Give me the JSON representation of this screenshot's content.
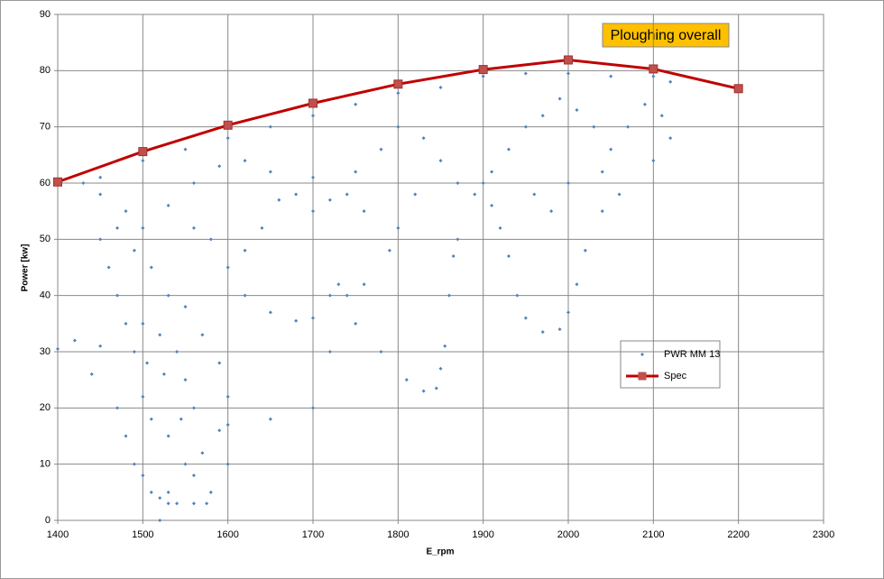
{
  "chart_data": {
    "type": "scatter",
    "title": "Ploughing overall",
    "xlabel": "E_rpm",
    "ylabel": "Power [kw]",
    "xlim": [
      1400,
      2300
    ],
    "xticks": [
      1400,
      1500,
      1600,
      1700,
      1800,
      1900,
      2000,
      2100,
      2200,
      2300
    ],
    "ylim": [
      0,
      90
    ],
    "yticks": [
      0,
      10,
      20,
      30,
      40,
      50,
      60,
      70,
      80,
      90
    ],
    "grid": true,
    "legend": "right",
    "series": [
      {
        "name": "PWR MM 13",
        "type": "scatter",
        "color": "#4f81bd",
        "x": [
          1400,
          1420,
          1450,
          1440,
          1470,
          1480,
          1490,
          1500,
          1510,
          1520,
          1530,
          1540,
          1560,
          1575,
          1580,
          1570,
          1560,
          1550,
          1540,
          1520,
          1500,
          1490,
          1500,
          1510,
          1530,
          1550,
          1560,
          1545,
          1525,
          1505,
          1480,
          1470,
          1460,
          1450,
          1470,
          1490,
          1510,
          1530,
          1550,
          1570,
          1590,
          1600,
          1590,
          1600,
          1520,
          1530,
          1430,
          1450,
          1480,
          1500,
          1530,
          1560,
          1590,
          1620,
          1650,
          1680,
          1700,
          1720,
          1750,
          1780,
          1800,
          1830,
          1850,
          1870,
          1890,
          1910,
          1930,
          1950,
          1970,
          1990,
          2010,
          2030,
          2050,
          2070,
          2090,
          2110,
          2120,
          2100,
          1450,
          1500,
          1550,
          1600,
          1650,
          1700,
          1750,
          1800,
          1850,
          1900,
          1950,
          2000,
          2050,
          2100,
          2120,
          1600,
          1620,
          1650,
          1680,
          1700,
          1720,
          1740,
          1760,
          1790,
          1800,
          1820,
          1760,
          1740,
          1700,
          1660,
          1640,
          1620,
          1580,
          1560,
          1600,
          1650,
          1700,
          1720,
          1730,
          1750,
          1780,
          1810,
          1830,
          1845,
          1850,
          1855,
          1860,
          1865,
          1870,
          1900,
          1910,
          1920,
          1930,
          1940,
          1950,
          1970,
          1990,
          2000,
          2010,
          2020,
          2040,
          2060,
          2040,
          2000,
          1980,
          1960
        ],
        "values": [
          30.5,
          32,
          31,
          26,
          20,
          15,
          10,
          8,
          5,
          4,
          3,
          3,
          3,
          3,
          5,
          12,
          20,
          25,
          30,
          33,
          35,
          30,
          22,
          18,
          15,
          10,
          8,
          18,
          26,
          28,
          35,
          40,
          45,
          50,
          52,
          48,
          45,
          40,
          38,
          33,
          28,
          22,
          16,
          10,
          0,
          5,
          60,
          58,
          55,
          52,
          56,
          60,
          63,
          64,
          62,
          58,
          55,
          57,
          62,
          66,
          70,
          68,
          64,
          60,
          58,
          62,
          66,
          70,
          72,
          75,
          73,
          70,
          66,
          70,
          74,
          72,
          68,
          64,
          61,
          64,
          66,
          68,
          70,
          72,
          74,
          76,
          77,
          79,
          79.5,
          79.5,
          79,
          79,
          78,
          45,
          40,
          37,
          35.5,
          36,
          40,
          40,
          42,
          48,
          52,
          58,
          55,
          58,
          61,
          57,
          52,
          48,
          50,
          52,
          17,
          18,
          20,
          30,
          42,
          35,
          30,
          25,
          23,
          23.5,
          27,
          31,
          40,
          47,
          50,
          60,
          56,
          52,
          47,
          40,
          36,
          33.5,
          34,
          37,
          42,
          48,
          55,
          58,
          62,
          60,
          55,
          58
        ]
      },
      {
        "name": "Spec",
        "type": "line",
        "color": "#c00000",
        "x": [
          1400,
          1500,
          1600,
          1700,
          1800,
          1900,
          2000,
          2100,
          2200
        ],
        "values": [
          60.2,
          65.6,
          70.3,
          74.2,
          77.6,
          80.2,
          81.9,
          80.3,
          76.8
        ]
      }
    ]
  }
}
